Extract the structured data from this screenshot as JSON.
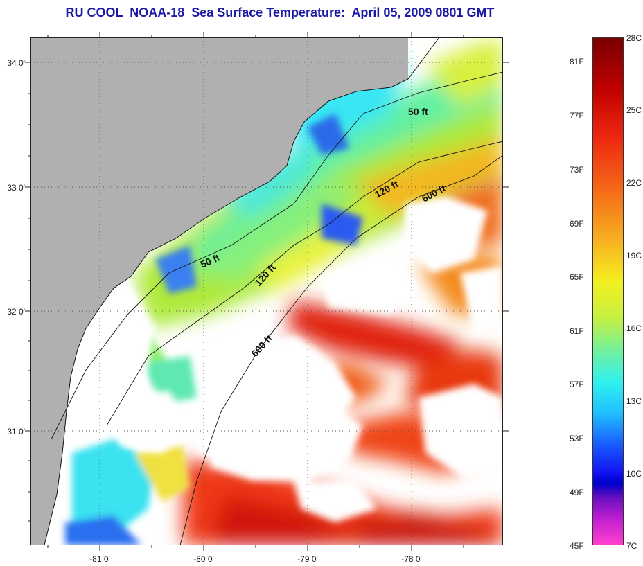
{
  "title": "RU COOL  NOAA-18  Sea Surface Temperature:  April 05, 2009 0801 GMT",
  "lat_labels": [
    "34 0'",
    "33 0'",
    "32 0'",
    "31 0'"
  ],
  "lon_labels": [
    "-81 0'",
    "-80 0'",
    "-79 0'",
    "-78 0'"
  ],
  "contour_labels": [
    "50 ft",
    "120 ft",
    "600 ft",
    "50 ft",
    "120 ft",
    "600 ft"
  ],
  "colorbar": {
    "fahrenheit": [
      "81F",
      "77F",
      "73F",
      "69F",
      "65F",
      "61F",
      "57F",
      "53F",
      "49F",
      "45F"
    ],
    "celsius": [
      "28C",
      "25C",
      "22C",
      "19C",
      "16C",
      "13C",
      "10C",
      "7C"
    ]
  },
  "colors": {
    "land": "#b0b0b0",
    "cloud": "#ffffff",
    "title": "#1a1aa6"
  }
}
